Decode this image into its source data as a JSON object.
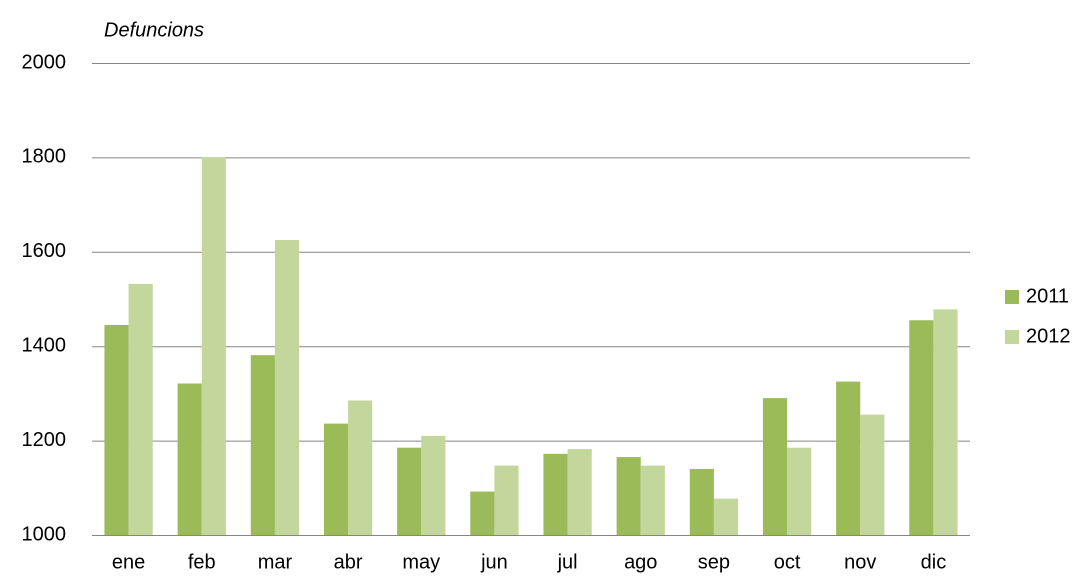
{
  "chart_data": {
    "type": "bar",
    "title": "Defuncions",
    "categories": [
      "ene",
      "feb",
      "mar",
      "abr",
      "may",
      "jun",
      "jul",
      "ago",
      "sep",
      "oct",
      "nov",
      "dic"
    ],
    "series": [
      {
        "name": "2011",
        "color": "#9bbb59",
        "values": [
          1445,
          1321,
          1381,
          1236,
          1185,
          1092,
          1172,
          1165,
          1140,
          1290,
          1325,
          1455
        ]
      },
      {
        "name": "2012",
        "color": "#c3d69b",
        "values": [
          1532,
          1800,
          1625,
          1285,
          1210,
          1147,
          1182,
          1147,
          1077,
          1185,
          1255,
          1478
        ]
      }
    ],
    "ylim": [
      1000,
      2000
    ],
    "yticks": [
      1000,
      1200,
      1400,
      1600,
      1800,
      2000
    ],
    "grid": true,
    "legend": "right"
  }
}
